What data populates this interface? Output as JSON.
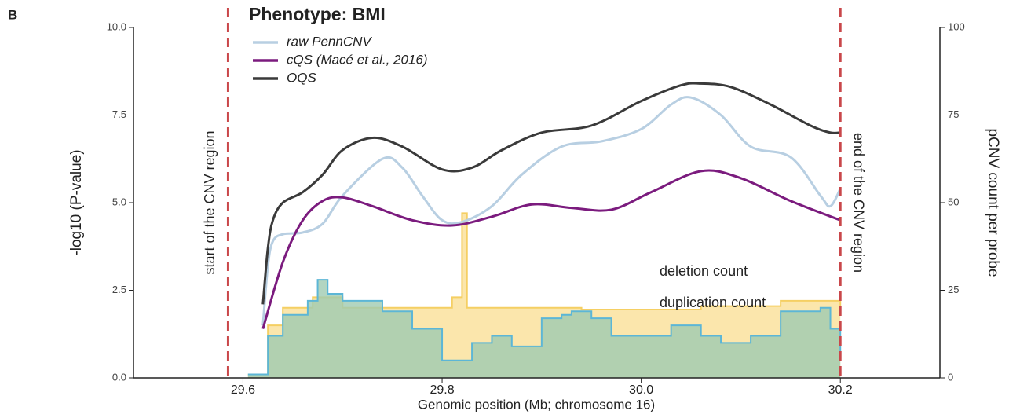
{
  "chart_data": {
    "type": "line",
    "panel_label": "B",
    "title": "Phenotype: BMI",
    "xlabel": "Genomic position (Mb; chromosome 16)",
    "ylabel": "-log10 (P-value)",
    "y2label": "pCNV count per probe",
    "xlim": [
      29.49,
      30.3
    ],
    "xticks": [
      29.6,
      29.8,
      {
        "value": 30.0,
        "label": "30.0"
      },
      30.2
    ],
    "ylim": [
      0,
      10
    ],
    "yticks": [
      {
        "value": 0,
        "label": "0.0"
      },
      2.5,
      {
        "value": 5,
        "label": "5.0"
      },
      7.5,
      {
        "value": 10,
        "label": "10.0"
      }
    ],
    "y2lim": [
      0,
      100
    ],
    "y2ticks": [
      0,
      25,
      50,
      75,
      100
    ],
    "vlines": [
      {
        "x": 29.585,
        "label": "start of the CNV region",
        "color": "#c9474a"
      },
      {
        "x": 30.2,
        "label": "end of the CNV region",
        "color": "#c9474a"
      }
    ],
    "areas": [
      {
        "name": "deletion count",
        "axis": "y2",
        "color": "#f5cf63",
        "fill": "#fbe6ac",
        "label_color": "#b8964a",
        "x": [
          29.605,
          29.625,
          29.64,
          29.67,
          29.7,
          29.78,
          29.81,
          29.82,
          29.825,
          29.94,
          30.06,
          30.14,
          30.2
        ],
        "values": [
          1,
          15,
          20,
          23,
          20,
          20,
          23,
          47,
          20,
          19.5,
          20.5,
          22,
          20
        ]
      },
      {
        "name": "duplication count",
        "axis": "y2",
        "color": "#5cb6d6",
        "fill": "#9fcbb2",
        "label_color": "#2f7f7f",
        "x": [
          29.605,
          29.625,
          29.64,
          29.665,
          29.675,
          29.685,
          29.7,
          29.74,
          29.77,
          29.8,
          29.83,
          29.85,
          29.87,
          29.9,
          29.92,
          29.93,
          29.95,
          29.97,
          30.03,
          30.06,
          30.08,
          30.11,
          30.14,
          30.18,
          30.19,
          30.2
        ],
        "values": [
          1,
          12,
          18,
          22,
          28,
          24,
          22,
          19,
          14,
          5,
          10,
          12,
          9,
          17,
          18,
          19,
          17,
          12,
          15,
          12,
          10,
          12,
          19,
          20,
          14,
          7
        ]
      }
    ],
    "series": [
      {
        "name": "raw PennCNV",
        "color": "#b8cfe2",
        "x": [
          29.62,
          29.625,
          29.63,
          29.64,
          29.66,
          29.68,
          29.7,
          29.74,
          29.76,
          29.78,
          29.8,
          29.82,
          29.85,
          29.88,
          29.92,
          29.96,
          30.0,
          30.03,
          30.05,
          30.08,
          30.11,
          30.15,
          30.18,
          30.19,
          30.2
        ],
        "values": [
          1.5,
          3.2,
          3.9,
          4.1,
          4.15,
          4.4,
          5.2,
          6.25,
          6.0,
          5.2,
          4.5,
          4.45,
          4.9,
          5.8,
          6.6,
          6.75,
          7.1,
          7.8,
          8.0,
          7.5,
          6.6,
          6.3,
          5.2,
          4.9,
          5.4
        ]
      },
      {
        "name": "cQS (Macé et al., 2016)",
        "color": "#7b1b7e",
        "x": [
          29.62,
          29.64,
          29.66,
          29.68,
          29.7,
          29.73,
          29.77,
          29.81,
          29.85,
          29.89,
          29.93,
          29.97,
          30.01,
          30.06,
          30.1,
          30.15,
          30.2
        ],
        "values": [
          1.4,
          3.3,
          4.5,
          5.05,
          5.15,
          4.9,
          4.5,
          4.35,
          4.6,
          4.95,
          4.85,
          4.8,
          5.3,
          5.9,
          5.7,
          5.05,
          4.5
        ]
      },
      {
        "name": "OQS",
        "color": "#3a3a3a",
        "x": [
          29.62,
          29.625,
          29.63,
          29.64,
          29.66,
          29.68,
          29.7,
          29.73,
          29.76,
          29.8,
          29.83,
          29.86,
          29.9,
          29.95,
          30.0,
          30.04,
          30.06,
          30.09,
          30.13,
          30.17,
          30.19,
          30.2
        ],
        "values": [
          2.1,
          3.7,
          4.5,
          5.0,
          5.3,
          5.8,
          6.5,
          6.85,
          6.6,
          5.95,
          6.0,
          6.5,
          7.0,
          7.2,
          7.9,
          8.35,
          8.4,
          8.3,
          7.8,
          7.2,
          7.0,
          7.0
        ]
      }
    ]
  }
}
